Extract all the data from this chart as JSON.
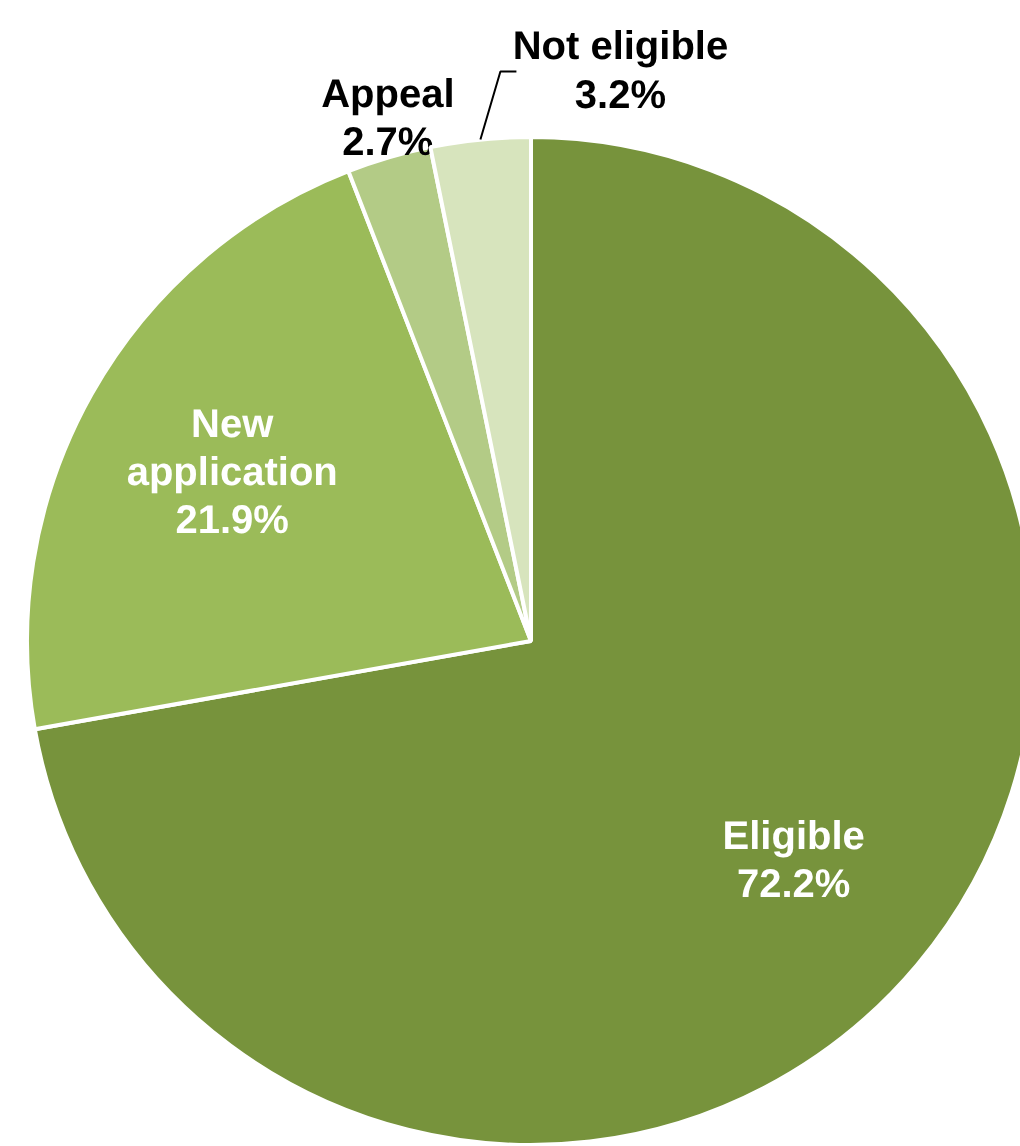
{
  "chart_data": {
    "type": "pie",
    "categories": [
      "Eligible",
      "New application",
      "Appeal",
      "Not eligible"
    ],
    "values": [
      72.2,
      21.9,
      2.7,
      3.2
    ],
    "colors": [
      "#77933c",
      "#9bbb59",
      "#b3cb86",
      "#d7e4bd"
    ],
    "value_labels": [
      "72.2%",
      "21.9%",
      "2.7%",
      "3.2%"
    ]
  }
}
